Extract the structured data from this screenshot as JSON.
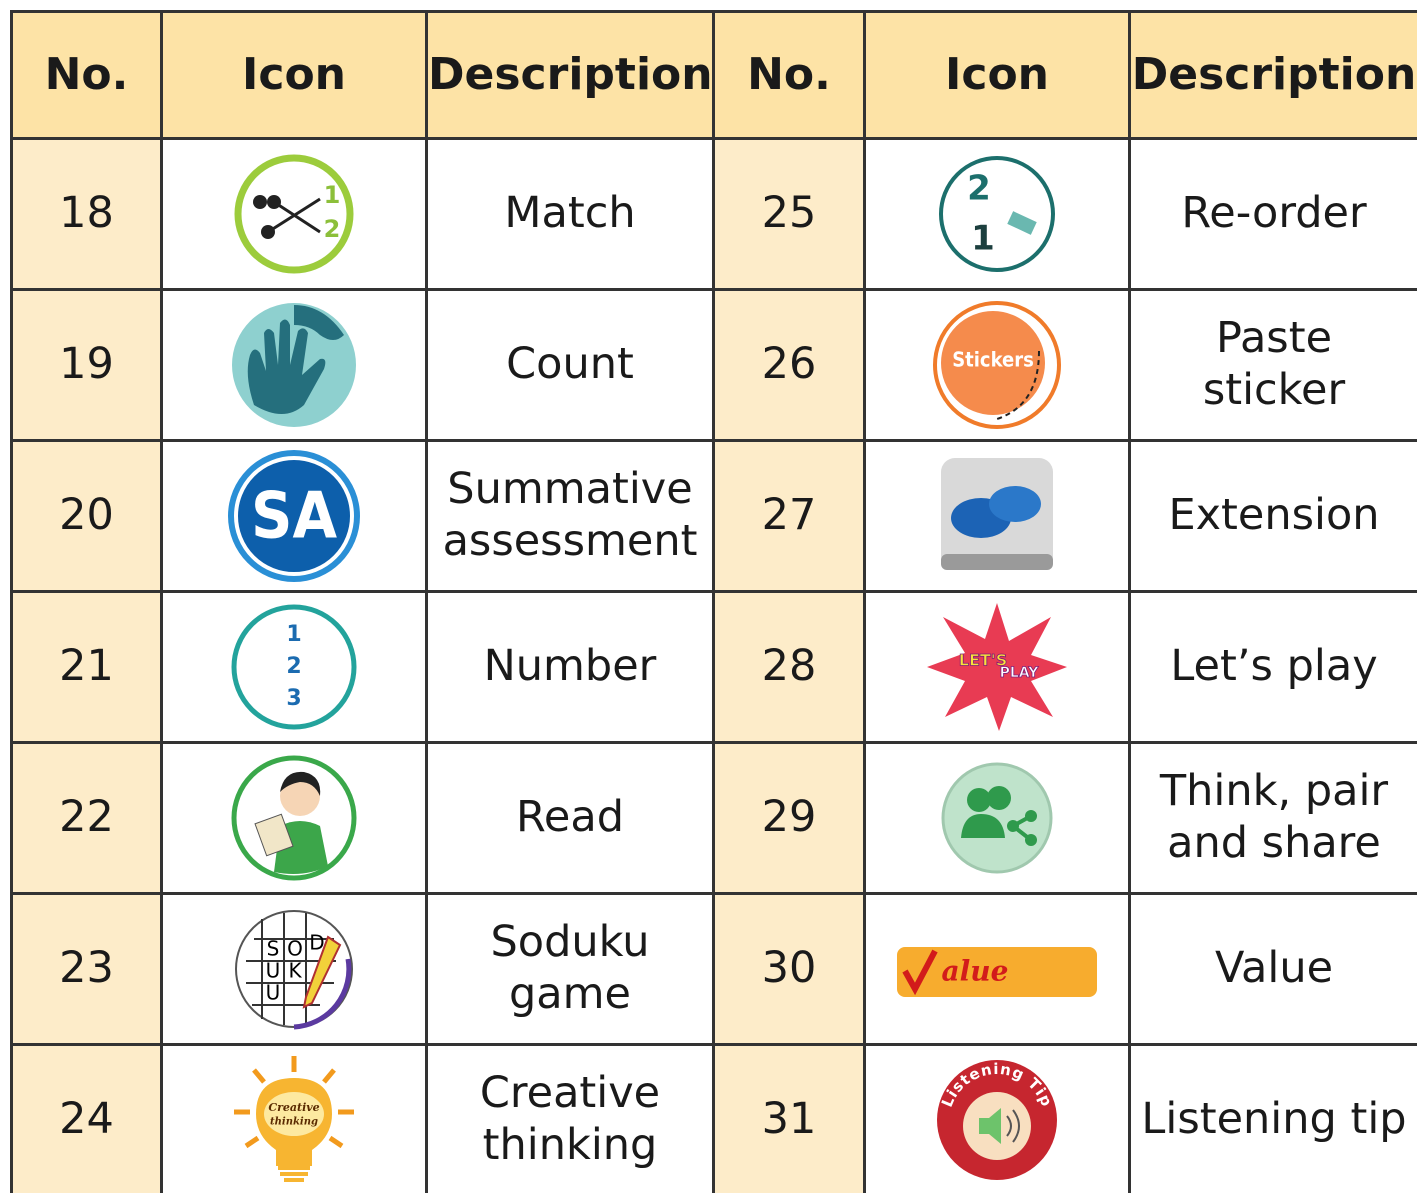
{
  "table": {
    "header": [
      "No.",
      "Icon",
      "Description",
      "No.",
      "Icon",
      "Description"
    ],
    "rows": [
      {
        "left": {
          "no": 18,
          "description": "Match",
          "icon_text": [
            "1",
            "2"
          ]
        },
        "right": {
          "no": 25,
          "description": "Re-order",
          "icon_text": [
            "2",
            "1"
          ]
        }
      },
      {
        "left": {
          "no": 19,
          "description": "Count"
        },
        "right": {
          "no": 26,
          "description": "Paste\nsticker",
          "icon_text": [
            "Stickers"
          ]
        }
      },
      {
        "left": {
          "no": 20,
          "description": "Summative\nassessment",
          "icon_text": [
            "SA"
          ]
        },
        "right": {
          "no": 27,
          "description": "Extension"
        }
      },
      {
        "left": {
          "no": 21,
          "description": "Number",
          "icon_text": [
            "1",
            "2",
            "3"
          ]
        },
        "right": {
          "no": 28,
          "description": "Let’s play",
          "icon_text": [
            "LET'S",
            "PLAY"
          ]
        }
      },
      {
        "left": {
          "no": 22,
          "description": "Read"
        },
        "right": {
          "no": 29,
          "description": "Think, pair\nand share"
        }
      },
      {
        "left": {
          "no": 23,
          "description": "Soduku\ngame",
          "icon_text": [
            "S",
            "O",
            "D",
            "U",
            "K",
            "U"
          ]
        },
        "right": {
          "no": 30,
          "description": "Value",
          "icon_text": [
            "alue"
          ]
        }
      },
      {
        "left": {
          "no": 24,
          "description": "Creative\nthinking",
          "icon_text": [
            "Creative",
            "thinking"
          ]
        },
        "right": {
          "no": 31,
          "description": "Listening tip",
          "icon_text": [
            "Listening Tip"
          ]
        }
      }
    ]
  }
}
